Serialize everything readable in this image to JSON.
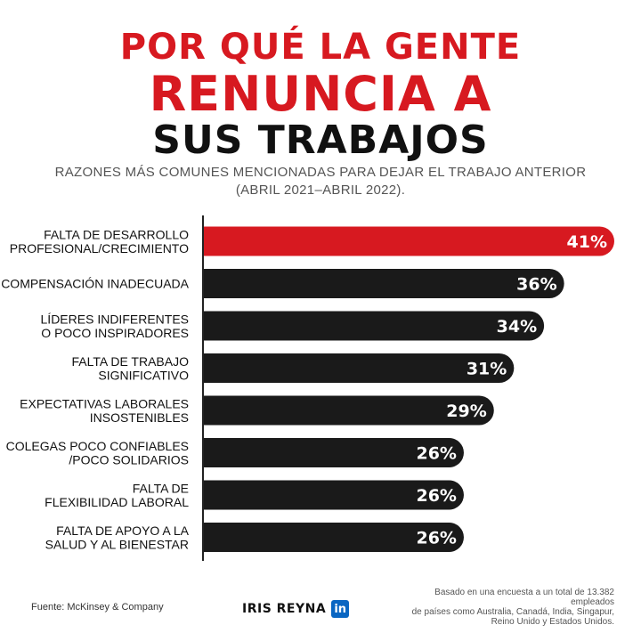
{
  "header": {
    "title_line1": "POR QUÉ LA GENTE",
    "title_line2": "RENUNCIA A",
    "title_line3": "SUS TRABAJOS",
    "subtitle_line1": "RAZONES MÁS COMUNES MENCIONADAS PARA DEJAR EL TRABAJO ANTERIOR",
    "subtitle_line2": "(ABRIL 2021–ABRIL 2022)."
  },
  "colors": {
    "highlight": "#d71920",
    "bar": "#1a1a1a",
    "title_red": "#d71920",
    "title_dark": "#111111"
  },
  "chart_data": {
    "type": "bar",
    "orientation": "horizontal",
    "title": "RAZONES MÁS COMUNES MENCIONADAS PARA DEJAR EL TRABAJO ANTERIOR",
    "categories": [
      [
        "FALTA DE DESARROLLO",
        "PROFESIONAL/CRECIMIENTO"
      ],
      [
        "COMPENSACIÓN INADECUADA"
      ],
      [
        "LÍDERES INDIFERENTES",
        "O POCO INSPIRADORES"
      ],
      [
        "FALTA DE TRABAJO",
        "SIGNIFICATIVO"
      ],
      [
        "EXPECTATIVAS LABORALES",
        "INSOSTENIBLES"
      ],
      [
        "COLEGAS POCO CONFIABLES",
        "/POCO SOLIDARIOS"
      ],
      [
        "FALTA DE",
        "FLEXIBILIDAD LABORAL"
      ],
      [
        "FALTA DE APOYO A LA",
        "SALUD Y AL BIENESTAR"
      ]
    ],
    "values": [
      41,
      36,
      34,
      31,
      29,
      26,
      26,
      26
    ],
    "labels": [
      "41%",
      "36%",
      "34%",
      "31%",
      "29%",
      "26%",
      "26%",
      "26%"
    ],
    "highlight_index": 0,
    "unit": "%",
    "xlim": [
      0,
      41
    ]
  },
  "footer": {
    "source": "Fuente: McKinsey & Company",
    "author": "IRIS REYNA",
    "linkedin_badge": "in",
    "note_line1": "Basado en una encuesta a un total de 13.382 empleados",
    "note_line2": "de países como Australia, Canadá, India, Singapur,",
    "note_line3": "Reino Unido y Estados Unidos."
  }
}
